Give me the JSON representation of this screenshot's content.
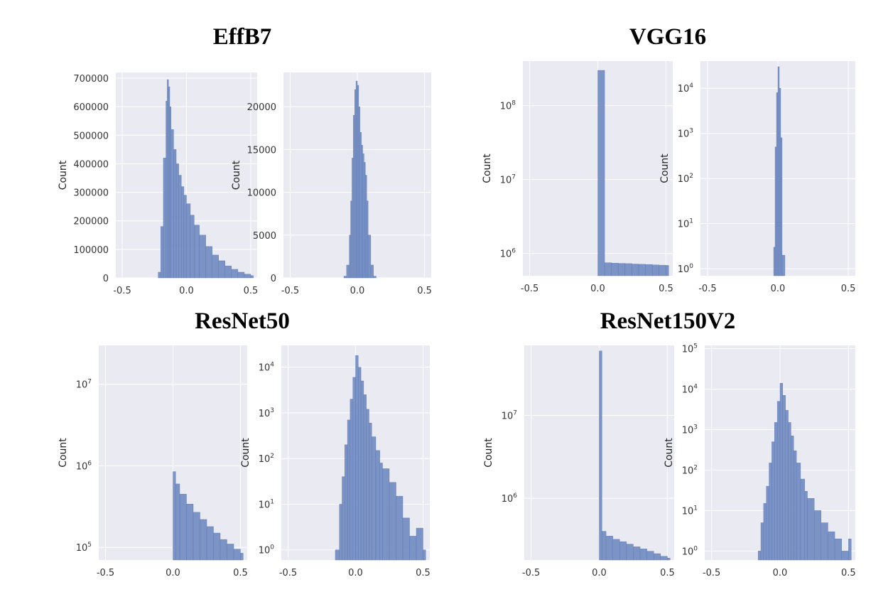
{
  "colors": {
    "bar": "#6f89c0",
    "bar_edge": "#5d79b6",
    "panel_bg": "#eaeaf2",
    "grid": "#ffffff"
  },
  "chart_data": [
    {
      "title": "EffB7",
      "type": "bar",
      "subplots": [
        {
          "ylabel": "Count",
          "yscale": "linear",
          "xlim": [
            -0.55,
            0.55
          ],
          "ylim": [
            0,
            720000
          ],
          "xticks": [
            "-0.5",
            "0.0",
            "0.5"
          ],
          "xtick_values": [
            -0.5,
            0.0,
            0.5
          ],
          "yticks": [
            "0",
            "100000",
            "200000",
            "300000",
            "400000",
            "500000",
            "600000",
            "700000"
          ],
          "ytick_values": [
            0,
            100000,
            200000,
            300000,
            400000,
            500000,
            600000,
            700000
          ],
          "x": [
            -0.22,
            -0.2,
            -0.18,
            -0.16,
            -0.15,
            -0.14,
            -0.13,
            -0.12,
            -0.1,
            -0.08,
            -0.06,
            -0.04,
            -0.02,
            0.0,
            0.03,
            0.06,
            0.1,
            0.15,
            0.2,
            0.25,
            0.3,
            0.35,
            0.4,
            0.45,
            0.5
          ],
          "values": [
            20000,
            180000,
            420000,
            620000,
            695000,
            670000,
            600000,
            520000,
            450000,
            400000,
            360000,
            320000,
            290000,
            260000,
            220000,
            185000,
            150000,
            110000,
            80000,
            60000,
            42000,
            30000,
            20000,
            13000,
            8000
          ]
        },
        {
          "ylabel": "Count",
          "yscale": "linear",
          "xlim": [
            -0.55,
            0.55
          ],
          "ylim": [
            0,
            24000
          ],
          "xticks": [
            "-0.5",
            "0.0",
            "0.5"
          ],
          "xtick_values": [
            -0.5,
            0.0,
            0.5
          ],
          "yticks": [
            "0",
            "5000",
            "10000",
            "15000",
            "20000"
          ],
          "ytick_values": [
            0,
            5000,
            10000,
            15000,
            20000
          ],
          "x": [
            -0.1,
            -0.08,
            -0.06,
            -0.05,
            -0.04,
            -0.03,
            -0.02,
            -0.01,
            0.0,
            0.01,
            0.02,
            0.03,
            0.04,
            0.05,
            0.06,
            0.07,
            0.08,
            0.1,
            0.12
          ],
          "values": [
            200,
            1500,
            5000,
            9000,
            14000,
            19000,
            22000,
            23000,
            22500,
            20000,
            17000,
            15500,
            14500,
            13500,
            12000,
            9000,
            5000,
            1500,
            200
          ]
        }
      ]
    },
    {
      "title": "VGG16",
      "type": "bar",
      "subplots": [
        {
          "ylabel": "Count",
          "yscale": "log",
          "xlim": [
            -0.55,
            0.55
          ],
          "ylim": [
            500000,
            400000000
          ],
          "xticks": [
            "-0.5",
            "0.0",
            "0.5"
          ],
          "xtick_values": [
            -0.5,
            0.0,
            0.5
          ],
          "yticks": [
            {
              "base": "10",
              "exp": "6"
            },
            {
              "base": "10",
              "exp": "7"
            },
            {
              "base": "10",
              "exp": "8"
            }
          ],
          "ytick_values": [
            1000000,
            10000000,
            100000000
          ],
          "x": [
            0.0,
            0.05,
            0.1,
            0.15,
            0.2,
            0.25,
            0.3,
            0.35,
            0.4,
            0.45,
            0.5
          ],
          "values": [
            300000000,
            750000,
            740000,
            735000,
            730000,
            720000,
            715000,
            710000,
            700000,
            695000,
            690000
          ]
        },
        {
          "ylabel": "Count",
          "yscale": "log",
          "xlim": [
            -0.55,
            0.55
          ],
          "ylim": [
            0.7,
            40000
          ],
          "xticks": [
            "-0.5",
            "0.0",
            "0.5"
          ],
          "xtick_values": [
            -0.5,
            0.0,
            0.5
          ],
          "yticks": [
            {
              "base": "10",
              "exp": "0"
            },
            {
              "base": "10",
              "exp": "1"
            },
            {
              "base": "10",
              "exp": "2"
            },
            {
              "base": "10",
              "exp": "3"
            },
            {
              "base": "10",
              "exp": "4"
            }
          ],
          "ytick_values": [
            1,
            10,
            100,
            1000,
            10000
          ],
          "x": [
            -0.03,
            -0.02,
            -0.01,
            0.0,
            0.01,
            0.02,
            0.03
          ],
          "values": [
            3,
            500,
            8000,
            30000,
            10000,
            800,
            2
          ]
        }
      ]
    },
    {
      "title": "ResNet50",
      "type": "bar",
      "subplots": [
        {
          "ylabel": "Count",
          "yscale": "log",
          "xlim": [
            -0.55,
            0.55
          ],
          "ylim": [
            70000,
            30000000
          ],
          "xticks": [
            "-0.5",
            "0.0",
            "0.5"
          ],
          "xtick_values": [
            -0.5,
            0.0,
            0.5
          ],
          "yticks": [
            {
              "base": "10",
              "exp": "5"
            },
            {
              "base": "10",
              "exp": "6"
            },
            {
              "base": "10",
              "exp": "7"
            }
          ],
          "ytick_values": [
            100000,
            1000000,
            10000000
          ],
          "x": [
            0.0,
            0.02,
            0.05,
            0.1,
            0.15,
            0.2,
            0.25,
            0.3,
            0.35,
            0.4,
            0.45,
            0.5
          ],
          "values": [
            850000,
            600000,
            450000,
            340000,
            270000,
            220000,
            180000,
            150000,
            125000,
            110000,
            95000,
            85000
          ]
        },
        {
          "ylabel": "Count",
          "yscale": "log",
          "xlim": [
            -0.55,
            0.55
          ],
          "ylim": [
            0.6,
            30000
          ],
          "xticks": [
            "-0.5",
            "0.0",
            "0.5"
          ],
          "xtick_values": [
            -0.5,
            0.0,
            0.5
          ],
          "yticks": [
            {
              "base": "10",
              "exp": "0"
            },
            {
              "base": "10",
              "exp": "1"
            },
            {
              "base": "10",
              "exp": "2"
            },
            {
              "base": "10",
              "exp": "3"
            },
            {
              "base": "10",
              "exp": "4"
            }
          ],
          "ytick_values": [
            1,
            10,
            100,
            1000,
            10000
          ],
          "x": [
            -0.15,
            -0.12,
            -0.1,
            -0.08,
            -0.06,
            -0.04,
            -0.02,
            0.0,
            0.02,
            0.04,
            0.06,
            0.08,
            0.1,
            0.12,
            0.15,
            0.18,
            0.2,
            0.25,
            0.3,
            0.35,
            0.4,
            0.45,
            0.5
          ],
          "values": [
            1,
            10,
            40,
            200,
            700,
            2000,
            6000,
            18000,
            10000,
            5000,
            2500,
            1200,
            600,
            300,
            150,
            80,
            60,
            30,
            15,
            5,
            2,
            3,
            1
          ]
        }
      ]
    },
    {
      "title": "ResNet150V2",
      "type": "bar",
      "subplots": [
        {
          "ylabel": "Count",
          "yscale": "log",
          "xlim": [
            -0.55,
            0.55
          ],
          "ylim": [
            180000,
            70000000
          ],
          "xticks": [
            "-0.5",
            "0.0",
            "0.5"
          ],
          "xtick_values": [
            -0.5,
            0.0,
            0.5
          ],
          "yticks": [
            {
              "base": "10",
              "exp": "6"
            },
            {
              "base": "10",
              "exp": "7"
            }
          ],
          "ytick_values": [
            1000000,
            10000000
          ],
          "x": [
            0.0,
            0.02,
            0.05,
            0.1,
            0.15,
            0.2,
            0.25,
            0.3,
            0.35,
            0.4,
            0.45,
            0.5
          ],
          "values": [
            60000000,
            400000,
            350000,
            320000,
            300000,
            280000,
            260000,
            245000,
            230000,
            215000,
            200000,
            190000
          ]
        },
        {
          "ylabel": "Count",
          "yscale": "log",
          "xlim": [
            -0.55,
            0.55
          ],
          "ylim": [
            0.6,
            120000
          ],
          "xticks": [
            "-0.5",
            "0.0",
            "0.5"
          ],
          "xtick_values": [
            -0.5,
            0.0,
            0.5
          ],
          "yticks": [
            {
              "base": "10",
              "exp": "0"
            },
            {
              "base": "10",
              "exp": "1"
            },
            {
              "base": "10",
              "exp": "2"
            },
            {
              "base": "10",
              "exp": "3"
            },
            {
              "base": "10",
              "exp": "4"
            },
            {
              "base": "10",
              "exp": "5"
            }
          ],
          "ytick_values": [
            1,
            10,
            100,
            1000,
            10000,
            100000
          ],
          "x": [
            -0.16,
            -0.14,
            -0.12,
            -0.1,
            -0.08,
            -0.06,
            -0.04,
            -0.02,
            0.0,
            0.02,
            0.04,
            0.06,
            0.08,
            0.1,
            0.12,
            0.15,
            0.18,
            0.2,
            0.25,
            0.3,
            0.35,
            0.4,
            0.45,
            0.5
          ],
          "values": [
            1,
            5,
            15,
            40,
            150,
            500,
            1500,
            5000,
            14000,
            7000,
            3000,
            1500,
            700,
            300,
            150,
            60,
            30,
            20,
            10,
            5,
            3,
            2,
            1,
            2
          ]
        }
      ]
    }
  ]
}
